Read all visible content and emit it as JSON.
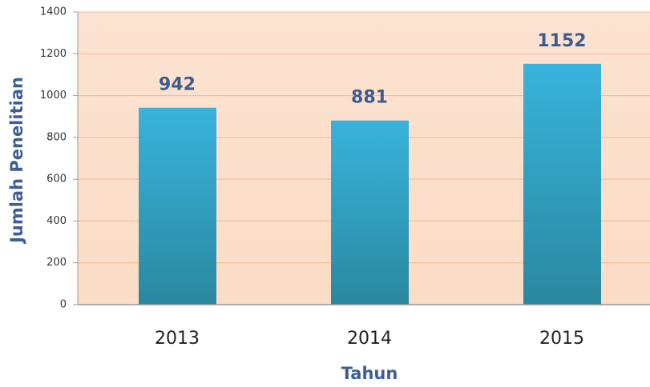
{
  "chart_data": {
    "type": "bar",
    "x_label": "Tahun",
    "y_label": "Jumlah Penelitian",
    "categories": [
      "2013",
      "2014",
      "2015"
    ],
    "values": [
      942,
      881,
      1152
    ],
    "ylim": [
      0,
      1400
    ],
    "yticks": [
      0,
      200,
      400,
      600,
      800,
      1000,
      1200,
      1400
    ],
    "grid": true
  }
}
